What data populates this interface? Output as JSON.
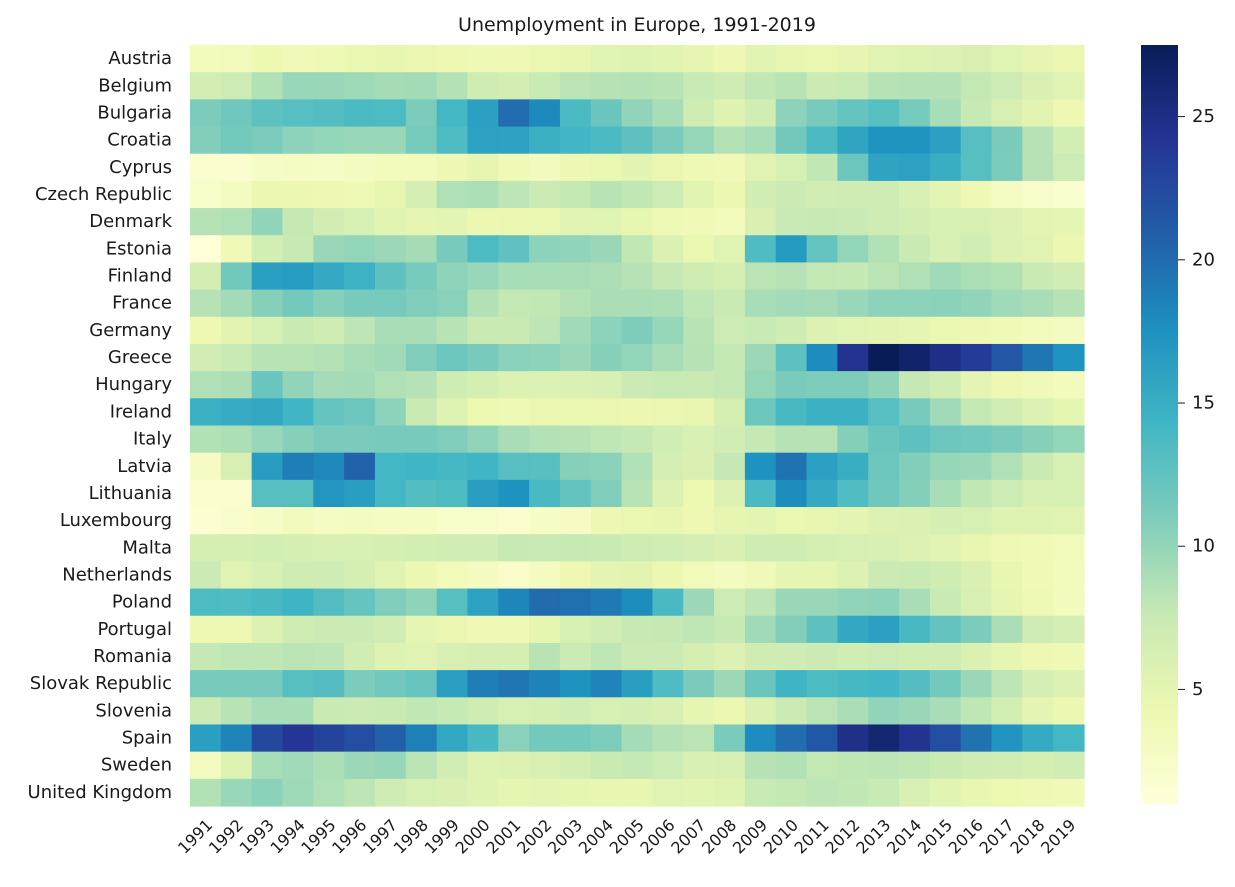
{
  "chart_data": {
    "type": "heatmap",
    "title": "Unemployment in Europe, 1991-2019",
    "xlabel": "",
    "ylabel": "",
    "colormap": "YlGnBu",
    "colorbar": {
      "range": [
        1,
        27.5
      ],
      "ticks": [
        5,
        10,
        15,
        20,
        25
      ]
    },
    "x": [
      "1991",
      "1992",
      "1993",
      "1994",
      "1995",
      "1996",
      "1997",
      "1998",
      "1999",
      "2000",
      "2001",
      "2002",
      "2003",
      "2004",
      "2005",
      "2006",
      "2007",
      "2008",
      "2009",
      "2010",
      "2011",
      "2012",
      "2013",
      "2014",
      "2015",
      "2016",
      "2017",
      "2018",
      "2019"
    ],
    "y": [
      "Austria",
      "Belgium",
      "Bulgaria",
      "Croatia",
      "Cyprus",
      "Czech Republic",
      "Denmark",
      "Estonia",
      "Finland",
      "France",
      "Germany",
      "Greece",
      "Hungary",
      "Ireland",
      "Italy",
      "Latvia",
      "Lithuania",
      "Luxembourg",
      "Malta",
      "Netherlands",
      "Poland",
      "Portugal",
      "Romania",
      "Slovak Republic",
      "Slovenia",
      "Spain",
      "Sweden",
      "United Kingdom"
    ],
    "values": [
      [
        3.4,
        3.6,
        4.3,
        3.8,
        3.9,
        4.6,
        4.8,
        4.5,
        4.2,
        3.9,
        4.0,
        4.6,
        4.8,
        5.5,
        5.6,
        5.3,
        4.9,
        4.1,
        5.3,
        4.8,
        4.6,
        4.9,
        5.4,
        5.6,
        5.7,
        6.0,
        5.5,
        4.9,
        4.5
      ],
      [
        6.6,
        7.1,
        8.6,
        9.8,
        9.7,
        9.5,
        9.2,
        9.3,
        8.5,
        6.9,
        6.6,
        7.5,
        8.2,
        8.4,
        8.5,
        8.3,
        7.5,
        7.0,
        7.9,
        8.3,
        7.2,
        7.5,
        8.4,
        8.5,
        8.5,
        7.8,
        7.1,
        6.0,
        5.4
      ],
      [
        11.1,
        11.8,
        12.7,
        13.1,
        13.3,
        13.7,
        13.6,
        11.1,
        14.1,
        16.2,
        19.9,
        18.1,
        13.7,
        12.1,
        10.1,
        9.0,
        6.9,
        5.6,
        6.8,
        10.3,
        11.3,
        12.3,
        13.0,
        11.4,
        9.1,
        7.6,
        6.2,
        5.2,
        4.2
      ],
      [
        10.8,
        11.5,
        11.1,
        10.3,
        10.0,
        9.8,
        9.7,
        11.4,
        13.5,
        16.1,
        16.0,
        14.8,
        14.2,
        13.7,
        12.7,
        11.2,
        9.9,
        8.5,
        9.1,
        11.6,
        13.7,
        15.8,
        17.3,
        17.3,
        16.2,
        13.1,
        11.2,
        8.4,
        6.6
      ],
      [
        1.8,
        1.8,
        2.6,
        2.7,
        2.6,
        3.1,
        3.4,
        3.4,
        4.1,
        4.9,
        3.8,
        3.3,
        4.1,
        4.6,
        5.2,
        4.5,
        3.9,
        3.7,
        5.4,
        6.3,
        7.9,
        11.9,
        15.9,
        16.1,
        15.0,
        13.0,
        11.1,
        8.4,
        7.1
      ],
      [
        2.3,
        3.1,
        4.4,
        4.4,
        4.1,
        3.9,
        4.8,
        6.5,
        8.7,
        8.8,
        8.1,
        7.3,
        7.8,
        8.3,
        7.9,
        7.1,
        5.3,
        4.4,
        6.7,
        7.3,
        6.7,
        7.0,
        7.0,
        6.1,
        5.1,
        4.0,
        2.9,
        2.2,
        2.0
      ],
      [
        8.4,
        8.7,
        10.1,
        7.7,
        6.7,
        6.3,
        5.3,
        4.9,
        5.1,
        4.4,
        4.5,
        4.6,
        5.4,
        5.5,
        4.8,
        3.9,
        3.8,
        3.5,
        6.0,
        7.5,
        7.6,
        7.5,
        7.0,
        6.6,
        6.3,
        6.2,
        5.8,
        5.1,
        5.0
      ],
      [
        1.2,
        3.7,
        6.6,
        7.6,
        9.7,
        10.0,
        9.6,
        9.2,
        11.3,
        13.6,
        12.6,
        10.3,
        10.1,
        9.7,
        7.9,
        5.9,
        4.6,
        5.5,
        13.5,
        16.7,
        12.3,
        10.0,
        8.6,
        7.4,
        6.2,
        6.8,
        5.8,
        5.4,
        4.4
      ],
      [
        6.6,
        11.7,
        16.3,
        16.6,
        15.4,
        14.6,
        12.7,
        11.4,
        10.2,
        9.8,
        9.1,
        9.1,
        9.0,
        8.8,
        8.4,
        7.7,
        6.9,
        6.4,
        8.2,
        8.4,
        7.8,
        7.7,
        8.2,
        8.7,
        9.4,
        8.8,
        8.6,
        7.4,
        6.7
      ],
      [
        8.4,
        9.3,
        10.6,
        11.5,
        10.6,
        11.3,
        11.4,
        10.9,
        10.5,
        8.6,
        7.8,
        7.9,
        8.5,
        8.9,
        8.9,
        8.8,
        8.0,
        7.4,
        9.1,
        9.3,
        9.2,
        9.8,
        10.3,
        10.3,
        10.4,
        10.1,
        9.4,
        9.0,
        8.4
      ],
      [
        4.2,
        5.2,
        6.3,
        7.4,
        6.9,
        8.1,
        9.0,
        9.0,
        8.3,
        7.4,
        7.4,
        8.1,
        9.4,
        10.3,
        11.0,
        9.9,
        8.3,
        7.1,
        7.5,
        6.9,
        5.8,
        5.4,
        5.2,
        5.0,
        4.6,
        4.1,
        3.8,
        3.4,
        3.1
      ],
      [
        6.7,
        7.5,
        8.3,
        8.3,
        8.5,
        9.1,
        9.4,
        10.9,
        11.9,
        11.3,
        10.5,
        10.3,
        9.7,
        10.6,
        10.0,
        9.0,
        8.4,
        7.8,
        9.6,
        12.7,
        17.9,
        24.4,
        27.5,
        26.5,
        24.9,
        23.6,
        21.5,
        19.3,
        17.3
      ],
      [
        8.7,
        8.9,
        12.1,
        10.1,
        9.2,
        9.3,
        8.7,
        8.4,
        6.9,
        6.4,
        5.7,
        5.8,
        5.9,
        6.1,
        7.2,
        7.5,
        7.4,
        7.8,
        10.0,
        11.2,
        11.0,
        11.0,
        10.2,
        7.7,
        6.8,
        5.1,
        4.2,
        3.7,
        3.4
      ],
      [
        14.7,
        15.2,
        15.6,
        14.3,
        12.3,
        11.9,
        10.3,
        7.4,
        5.6,
        4.3,
        3.9,
        4.5,
        4.6,
        4.5,
        4.4,
        4.5,
        4.7,
        6.4,
        12.0,
        13.9,
        14.7,
        14.7,
        13.1,
        11.3,
        9.4,
        7.8,
        6.7,
        5.8,
        5.0
      ],
      [
        8.6,
        8.8,
        9.8,
        10.6,
        11.2,
        11.2,
        11.3,
        11.3,
        10.9,
        10.1,
        9.0,
        8.5,
        8.4,
        8.0,
        7.7,
        6.8,
        6.1,
        6.7,
        7.7,
        8.4,
        8.4,
        10.7,
        12.1,
        12.7,
        11.9,
        11.7,
        11.2,
        10.6,
        10.0
      ],
      [
        2.7,
        6.2,
        16.5,
        18.8,
        18.2,
        20.6,
        14.1,
        14.3,
        14.0,
        14.3,
        13.1,
        12.9,
        10.6,
        10.4,
        8.7,
        6.5,
        6.0,
        7.7,
        17.5,
        19.5,
        16.2,
        15.0,
        11.9,
        10.8,
        9.9,
        9.6,
        8.7,
        7.4,
        6.3
      ],
      [
        1.8,
        1.8,
        13.1,
        13.0,
        17.1,
        16.4,
        14.1,
        13.3,
        13.6,
        16.4,
        17.4,
        13.8,
        12.4,
        10.9,
        8.3,
        5.8,
        4.3,
        5.8,
        13.8,
        17.8,
        15.4,
        13.4,
        11.8,
        10.7,
        9.1,
        7.9,
        7.1,
        6.2,
        6.3
      ],
      [
        1.6,
        2.1,
        2.5,
        3.2,
        2.9,
        3.0,
        2.7,
        2.7,
        2.4,
        2.3,
        1.8,
        2.6,
        2.8,
        4.1,
        4.6,
        4.7,
        4.2,
        4.9,
        5.1,
        4.6,
        4.8,
        5.1,
        5.8,
        5.9,
        6.5,
        6.3,
        5.6,
        5.6,
        5.4
      ],
      [
        6.4,
        6.4,
        6.6,
        6.4,
        6.2,
        6.3,
        6.4,
        6.6,
        6.7,
        6.7,
        7.6,
        7.5,
        7.6,
        7.4,
        6.9,
        6.8,
        6.5,
        6.0,
        6.9,
        6.9,
        6.4,
        6.2,
        6.1,
        5.7,
        5.4,
        4.7,
        4.0,
        3.7,
        3.6
      ],
      [
        7.2,
        5.4,
        6.1,
        6.9,
        7.0,
        6.4,
        5.4,
        4.4,
        3.6,
        3.1,
        2.3,
        3.1,
        4.2,
        5.1,
        5.2,
        4.4,
        3.6,
        3.1,
        3.7,
        5.0,
        5.0,
        5.8,
        7.2,
        7.4,
        6.9,
        6.0,
        4.8,
        3.8,
        3.4
      ],
      [
        13.6,
        13.5,
        13.9,
        14.4,
        13.3,
        12.3,
        10.9,
        10.2,
        13.0,
        16.1,
        18.3,
        20.0,
        19.7,
        19.1,
        17.8,
        13.8,
        9.6,
        7.1,
        8.1,
        9.7,
        9.7,
        10.1,
        10.3,
        9.0,
        7.5,
        6.2,
        4.9,
        3.9,
        3.3
      ],
      [
        4.2,
        4.2,
        5.7,
        6.9,
        7.3,
        7.3,
        6.7,
        4.9,
        4.5,
        4.0,
        4.0,
        5.0,
        6.3,
        6.7,
        7.6,
        7.7,
        8.0,
        7.6,
        9.4,
        10.8,
        12.7,
        15.5,
        16.2,
        13.9,
        12.4,
        11.1,
        8.9,
        7.0,
        6.5
      ],
      [
        7.7,
        8.0,
        8.0,
        8.2,
        8.1,
        6.7,
        5.6,
        5.4,
        6.2,
        6.5,
        6.4,
        8.3,
        7.2,
        8.0,
        7.2,
        7.3,
        6.4,
        5.8,
        6.9,
        7.0,
        7.2,
        6.8,
        7.1,
        6.8,
        6.8,
        5.9,
        4.9,
        4.2,
        3.9
      ],
      [
        11.3,
        11.3,
        11.3,
        13.0,
        13.2,
        11.1,
        11.6,
        12.2,
        16.3,
        18.8,
        19.3,
        18.5,
        17.4,
        18.4,
        16.4,
        13.5,
        11.2,
        9.6,
        12.1,
        14.4,
        13.6,
        14.0,
        14.2,
        13.2,
        11.5,
        9.7,
        8.1,
        6.5,
        5.8
      ],
      [
        7.2,
        8.3,
        9.1,
        9.1,
        7.4,
        7.3,
        7.4,
        7.9,
        7.6,
        6.9,
        6.3,
        6.4,
        6.7,
        6.3,
        6.5,
        6.0,
        4.9,
        4.4,
        5.9,
        7.3,
        8.2,
        8.9,
        10.1,
        9.7,
        9.0,
        8.0,
        6.6,
        5.1,
        4.4
      ],
      [
        16.3,
        18.4,
        22.6,
        24.1,
        22.9,
        22.1,
        20.7,
        18.7,
        15.6,
        13.9,
        10.5,
        11.5,
        11.5,
        11.0,
        9.2,
        8.5,
        8.2,
        11.2,
        17.9,
        19.9,
        21.4,
        24.8,
        26.1,
        24.4,
        22.1,
        19.6,
        17.2,
        15.3,
        14.1
      ],
      [
        3.1,
        5.6,
        9.1,
        9.4,
        8.8,
        9.6,
        9.9,
        8.2,
        6.7,
        5.6,
        5.8,
        6.0,
        6.6,
        7.4,
        7.7,
        7.1,
        6.1,
        6.2,
        8.4,
        8.6,
        7.8,
        8.0,
        8.1,
        7.9,
        7.4,
        7.0,
        6.7,
        6.4,
        6.8
      ],
      [
        8.6,
        9.8,
        10.4,
        9.5,
        8.7,
        8.1,
        7.0,
        6.3,
        6.0,
        5.6,
        5.0,
        5.1,
        5.0,
        4.8,
        4.8,
        5.4,
        5.3,
        5.6,
        7.5,
        7.8,
        8.1,
        7.9,
        7.5,
        6.1,
        5.3,
        4.8,
        4.3,
        4.0,
        3.8
      ]
    ]
  }
}
